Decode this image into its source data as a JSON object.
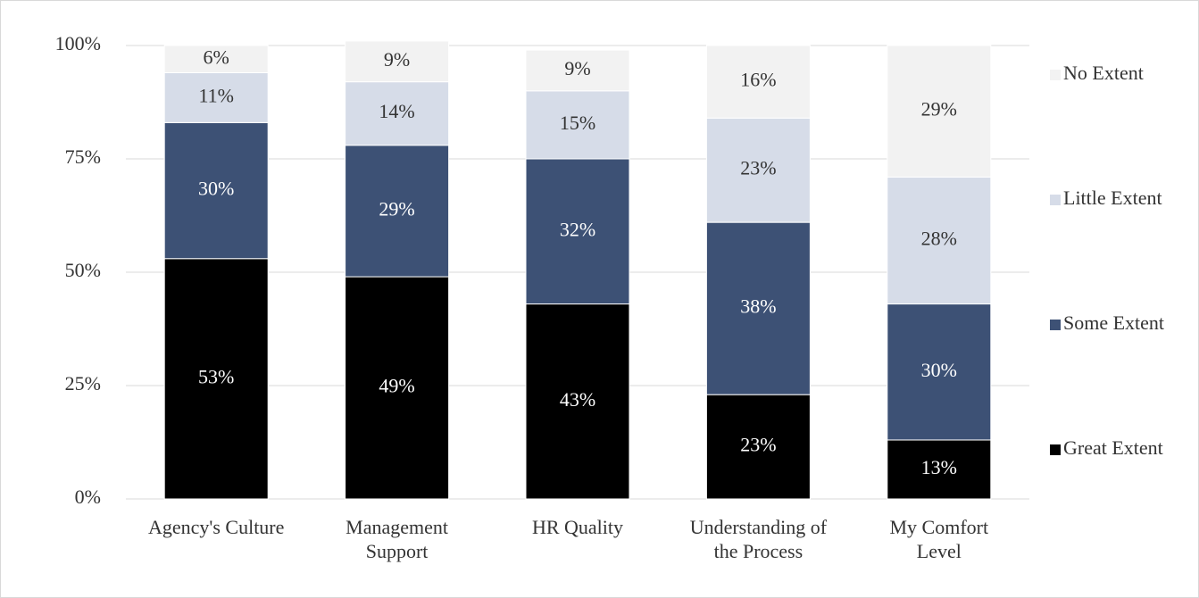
{
  "chart_data": {
    "type": "stacked_bar",
    "categories": [
      "Agency's Culture",
      "Management Support",
      "HR Quality",
      "Understanding of the Process",
      "My Comfort Level"
    ],
    "series": [
      {
        "name": "Great Extent",
        "color": "#000000",
        "values": [
          53,
          49,
          43,
          23,
          13
        ],
        "value_labels": [
          "53%",
          "49%",
          "43%",
          "23%",
          "13%"
        ]
      },
      {
        "name": "Some Extent",
        "color": "#3d5175",
        "values": [
          30,
          29,
          32,
          38,
          30
        ],
        "value_labels": [
          "30%",
          "29%",
          "32%",
          "38%",
          "30%"
        ]
      },
      {
        "name": "Little Extent",
        "color": "#d6dce8",
        "values": [
          11,
          14,
          15,
          23,
          28
        ],
        "value_labels": [
          "11%",
          "14%",
          "15%",
          "23%",
          "28%"
        ]
      },
      {
        "name": "No Extent",
        "color": "#f2f2f2",
        "values": [
          6,
          9,
          9,
          16,
          29
        ],
        "value_labels": [
          "6%",
          "9%",
          "9%",
          "16%",
          "29%"
        ]
      }
    ],
    "ylim": [
      0,
      100
    ],
    "yticks": [
      {
        "value": 0,
        "label": "0%"
      },
      {
        "value": 25,
        "label": "25%"
      },
      {
        "value": 50,
        "label": "50%"
      },
      {
        "value": 75,
        "label": "75%"
      },
      {
        "value": 100,
        "label": "100%"
      }
    ],
    "grid": true,
    "legend": "right"
  }
}
